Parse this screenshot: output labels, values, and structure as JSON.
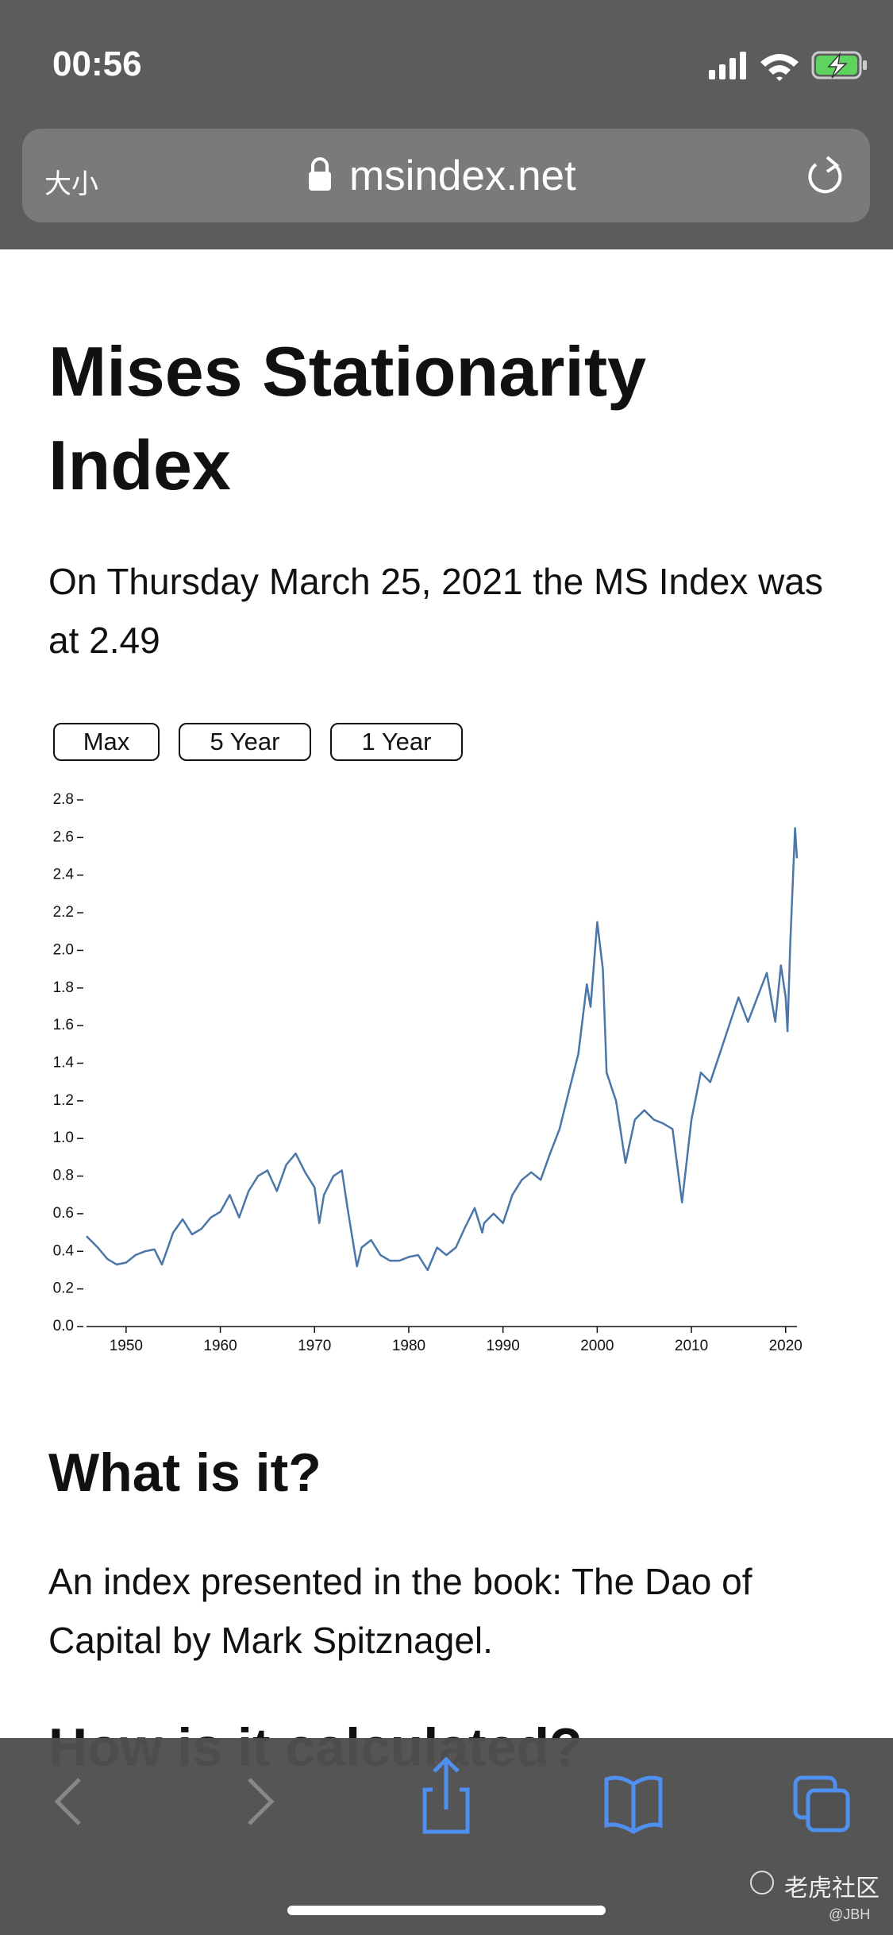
{
  "status_bar": {
    "time": "00:56"
  },
  "address_bar": {
    "text_size": "大小",
    "url": "msindex.net"
  },
  "page": {
    "title": "Mises Stationarity Index",
    "summary": "On Thursday March 25, 2021 the MS Index was at 2.49",
    "range_buttons": [
      "Max",
      "5 Year",
      "1 Year"
    ],
    "sections": [
      {
        "heading": "What is it?",
        "text": "An index presented in the book: The Dao of Capital by Mark Spitznagel."
      },
      {
        "heading": "How is it calculated?"
      }
    ]
  },
  "chart_data": {
    "type": "line",
    "color": "#4a76a8",
    "x": [
      1945.8,
      1947,
      1948,
      1949,
      1950,
      1951,
      1952,
      1953,
      1953.8,
      1955,
      1956,
      1957,
      1958,
      1959,
      1960,
      1961,
      1962,
      1963,
      1964,
      1965,
      1966,
      1967,
      1968,
      1969,
      1970,
      1970.5,
      1971,
      1972,
      1972.9,
      1973.5,
      1974.5,
      1975,
      1976,
      1977,
      1978,
      1979,
      1980,
      1981,
      1982,
      1983,
      1984,
      1985,
      1986,
      1987,
      1987.8,
      1988,
      1989,
      1990,
      1991,
      1992,
      1993,
      1994,
      1995,
      1996,
      1997,
      1998,
      1998.9,
      1999.3,
      2000,
      2000.6,
      2001,
      2002,
      2003,
      2004,
      2005,
      2006,
      2007,
      2008,
      2009,
      2010,
      2011,
      2012,
      2013,
      2014,
      2015,
      2016,
      2017,
      2018,
      2018.9,
      2019.5,
      2020,
      2020.2,
      2020.5,
      2021,
      2021.2
    ],
    "values": [
      0.48,
      0.42,
      0.36,
      0.33,
      0.34,
      0.38,
      0.4,
      0.41,
      0.33,
      0.5,
      0.57,
      0.49,
      0.52,
      0.58,
      0.61,
      0.7,
      0.58,
      0.72,
      0.8,
      0.83,
      0.72,
      0.86,
      0.92,
      0.82,
      0.74,
      0.55,
      0.7,
      0.8,
      0.83,
      0.63,
      0.32,
      0.42,
      0.46,
      0.38,
      0.35,
      0.35,
      0.37,
      0.38,
      0.3,
      0.42,
      0.38,
      0.42,
      0.53,
      0.63,
      0.5,
      0.55,
      0.6,
      0.55,
      0.7,
      0.78,
      0.82,
      0.78,
      0.92,
      1.05,
      1.25,
      1.45,
      1.82,
      1.7,
      2.15,
      1.9,
      1.35,
      1.2,
      0.87,
      1.1,
      1.15,
      1.1,
      1.08,
      1.05,
      0.66,
      1.1,
      1.35,
      1.3,
      1.45,
      1.6,
      1.75,
      1.62,
      1.75,
      1.88,
      1.62,
      1.92,
      1.75,
      1.57,
      2.05,
      2.65,
      2.49
    ],
    "xlim": [
      1945.8,
      2021.2
    ],
    "xticks": [
      1950,
      1960,
      1970,
      1980,
      1990,
      2000,
      2010,
      2020
    ],
    "ylim": [
      0,
      2.8
    ],
    "yticks": [
      {
        "value": 0,
        "label": "0.0"
      },
      0.2,
      0.4,
      0.6,
      0.8,
      {
        "value": 1,
        "label": "1.0"
      },
      1.2,
      1.4,
      1.6,
      1.8,
      {
        "value": 2,
        "label": "2.0"
      },
      2.2,
      2.4,
      2.6,
      2.8
    ]
  },
  "watermark": {
    "name": "老虎社区",
    "user": "@JBH"
  }
}
